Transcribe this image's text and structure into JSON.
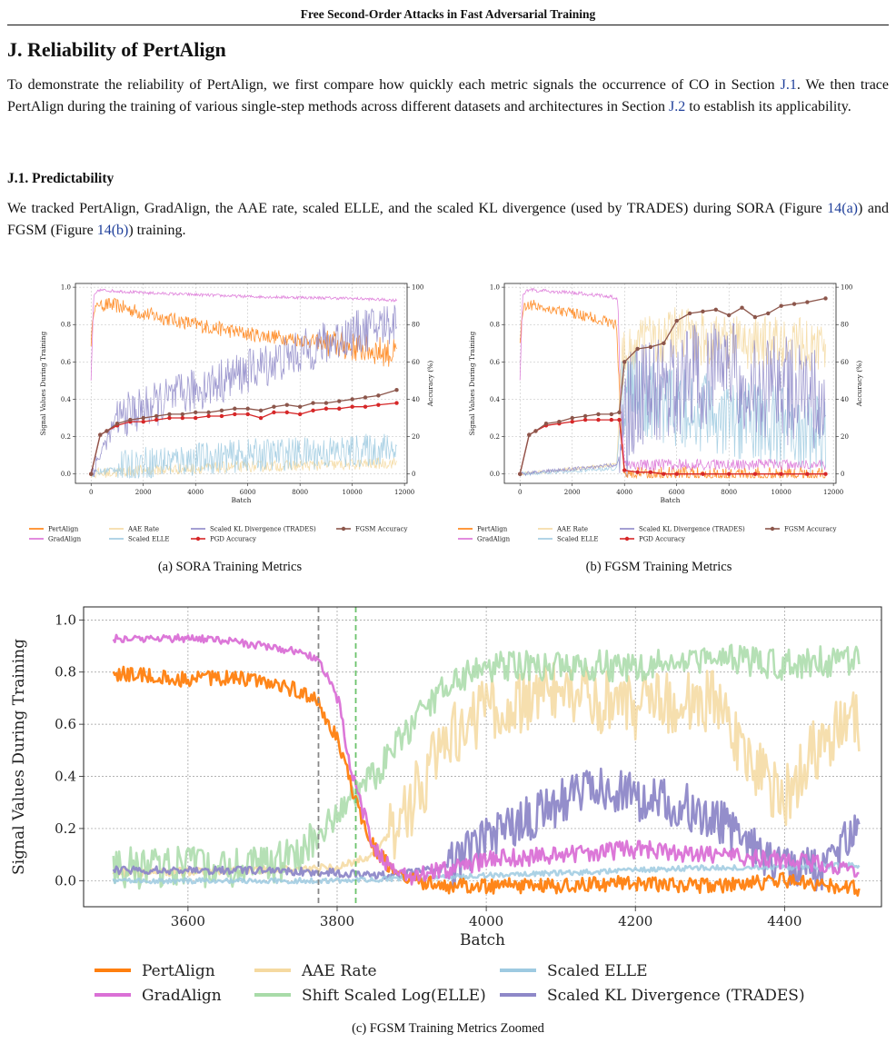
{
  "header": {
    "title": "Free Second-Order Attacks in Fast Adversarial Training"
  },
  "section": {
    "title": "J. Reliability of PertAlign",
    "intro": {
      "a": "To demonstrate the reliability of PertAlign, we first compare how quickly each metric signals the occurrence of CO in Section ",
      "ref1": "J.1",
      "b": ". We then trace PertAlign during the training of various single-step methods across different datasets and architectures in Section ",
      "ref2": "J.2",
      "c": " to establish its applicability."
    },
    "subsection": {
      "title": "J.1. Predictability",
      "para": {
        "a": "We tracked PertAlign, GradAlign, the AAE rate, scaled ELLE, and the scaled KL divergence (used by TRADES) during SORA (Figure ",
        "ref1": "14(a)",
        "b": ") and FGSM (Figure ",
        "ref2": "14(b)",
        "c": ") training."
      }
    }
  },
  "colors": {
    "pertalign": "#ff7f0e",
    "gradalign": "#da70d6",
    "aae": "#f5d9a0",
    "elle": "#9ecae1",
    "kl": "#8e88c8",
    "pgd": "#d62728",
    "fgsm": "#8c564b",
    "log_elle": "#a8dba8",
    "vline_gray": "#888888",
    "vline_green": "#6cc36c"
  },
  "figures": {
    "a": {
      "ylabel_left": "Signal Values During Training",
      "ylabel_right": "Accuracy (%)",
      "xlabel": "Batch",
      "caption": "(a)  SORA Training Metrics",
      "xticks": [
        "0",
        "2000",
        "4000",
        "6000",
        "8000",
        "10000",
        "12000"
      ],
      "yticks_left": [
        "0.0",
        "0.2",
        "0.4",
        "0.6",
        "0.8",
        "1.0"
      ],
      "yticks_right": [
        "0",
        "20",
        "40",
        "60",
        "80",
        "100"
      ],
      "legend": [
        "PertAlign",
        "GradAlign",
        "AAE Rate",
        "Scaled ELLE",
        "Scaled KL Divergence (TRADES)",
        "PGD Accuracy",
        "FGSM Accuracy"
      ]
    },
    "b": {
      "ylabel_left": "Signal Values During Training",
      "ylabel_right": "Accuracy (%)",
      "xlabel": "Batch",
      "caption": "(b)  FGSM Training Metrics",
      "xticks": [
        "0",
        "2000",
        "4000",
        "6000",
        "8000",
        "10000",
        "12000"
      ],
      "yticks_left": [
        "0.0",
        "0.2",
        "0.4",
        "0.6",
        "0.8",
        "1.0"
      ],
      "yticks_right": [
        "0",
        "20",
        "40",
        "60",
        "80",
        "100"
      ],
      "legend": [
        "PertAlign",
        "GradAlign",
        "AAE Rate",
        "Scaled ELLE",
        "Scaled KL Divergence (TRADES)",
        "PGD Accuracy",
        "FGSM Accuracy"
      ]
    },
    "c": {
      "ylabel": "Signal Values During Training",
      "xlabel": "Batch",
      "caption": "(c)  FGSM Training Metrics Zoomed",
      "xticks": [
        "3600",
        "3800",
        "4000",
        "4200",
        "4400"
      ],
      "yticks": [
        "0.0",
        "0.2",
        "0.4",
        "0.6",
        "0.8",
        "1.0"
      ],
      "legend": [
        "PertAlign",
        "GradAlign",
        "AAE Rate",
        "Shift Scaled Log(ELLE)",
        "Scaled ELLE",
        "Scaled KL Divergence (TRADES)"
      ]
    }
  },
  "chart_data": [
    {
      "type": "line",
      "title": "",
      "xlabel": "Batch",
      "ylabel": "Signal Values During Training",
      "y2label": "Accuracy (%)",
      "xlim": [
        -600,
        12100
      ],
      "ylim": [
        -0.05,
        1.02
      ],
      "y2lim": [
        -5,
        102
      ],
      "grid": true,
      "series": [
        {
          "name": "PertAlign",
          "x": [
            0,
            100,
            300,
            1000,
            2000,
            4000,
            6000,
            8000,
            10000,
            11000,
            11700
          ],
          "y": [
            0.7,
            0.88,
            0.91,
            0.9,
            0.86,
            0.8,
            0.75,
            0.72,
            0.68,
            0.66,
            0.64
          ]
        },
        {
          "name": "GradAlign",
          "x": [
            0,
            100,
            300,
            2000,
            6000,
            10000,
            11700
          ],
          "y": [
            0.5,
            0.95,
            0.985,
            0.97,
            0.95,
            0.94,
            0.93
          ]
        },
        {
          "name": "AAE Rate",
          "x": [
            0,
            2000,
            6000,
            10000,
            11700
          ],
          "y": [
            0.0,
            0.02,
            0.04,
            0.05,
            0.06
          ]
        },
        {
          "name": "Scaled ELLE",
          "x": [
            0,
            2000,
            6000,
            10000,
            11700
          ],
          "y": [
            0.0,
            0.06,
            0.1,
            0.12,
            0.14
          ]
        },
        {
          "name": "Scaled KL Divergence (TRADES)",
          "x": [
            0,
            1000,
            4000,
            6000,
            8000,
            10000,
            11700
          ],
          "y": [
            0.0,
            0.3,
            0.45,
            0.55,
            0.65,
            0.75,
            0.82
          ]
        },
        {
          "name": "PGD Accuracy",
          "x": [
            0,
            350,
            600,
            1000,
            1500,
            2000,
            2500,
            3000,
            3500,
            4000,
            4500,
            5000,
            5500,
            6000,
            6500,
            7000,
            7500,
            8000,
            8500,
            9000,
            9500,
            10000,
            10500,
            11000,
            11700
          ],
          "y": [
            0,
            21,
            23,
            26,
            28,
            28,
            29,
            30,
            30,
            30,
            31,
            31,
            32,
            32,
            30,
            33,
            33,
            32,
            34,
            35,
            35,
            36,
            36,
            37,
            38
          ]
        },
        {
          "name": "FGSM Accuracy",
          "x": [
            0,
            350,
            600,
            1000,
            1500,
            2000,
            2500,
            3000,
            3500,
            4000,
            4500,
            5000,
            5500,
            6000,
            6500,
            7000,
            7500,
            8000,
            8500,
            9000,
            9500,
            10000,
            10500,
            11000,
            11700
          ],
          "y": [
            0,
            21,
            23,
            27,
            29,
            30,
            31,
            32,
            32,
            33,
            33,
            34,
            35,
            35,
            34,
            36,
            37,
            36,
            38,
            38,
            39,
            40,
            41,
            42,
            45
          ]
        }
      ]
    },
    {
      "type": "line",
      "title": "",
      "xlabel": "Batch",
      "ylabel": "Signal Values During Training",
      "y2label": "Accuracy (%)",
      "xlim": [
        -600,
        12100
      ],
      "ylim": [
        -0.05,
        1.02
      ],
      "y2lim": [
        -5,
        102
      ],
      "grid": true,
      "series": [
        {
          "name": "PertAlign",
          "x": [
            0,
            100,
            300,
            1000,
            2000,
            3000,
            3700,
            3850,
            4000,
            6000,
            8000,
            10000,
            11700
          ],
          "y": [
            0.7,
            0.88,
            0.91,
            0.89,
            0.86,
            0.83,
            0.8,
            0.3,
            0.0,
            0.0,
            0.0,
            0.0,
            0.0
          ]
        },
        {
          "name": "GradAlign",
          "x": [
            0,
            100,
            300,
            2000,
            3500,
            3750,
            3850,
            4000,
            8000,
            11700
          ],
          "y": [
            0.5,
            0.95,
            0.985,
            0.97,
            0.95,
            0.93,
            0.4,
            0.05,
            0.05,
            0.05
          ]
        },
        {
          "name": "AAE Rate",
          "x": [
            0,
            3700,
            3900,
            4300,
            6000,
            8000,
            10000,
            11700
          ],
          "y": [
            0.0,
            0.05,
            0.6,
            0.7,
            0.75,
            0.7,
            0.7,
            0.7
          ]
        },
        {
          "name": "Scaled ELLE",
          "x": [
            0,
            3700,
            3900,
            4300,
            6000,
            8000,
            10000,
            11700
          ],
          "y": [
            0.0,
            0.03,
            0.4,
            0.45,
            0.35,
            0.3,
            0.25,
            0.2
          ]
        },
        {
          "name": "Scaled KL Divergence (TRADES)",
          "x": [
            0,
            3700,
            3900,
            4300,
            6000,
            8000,
            10000,
            11700
          ],
          "y": [
            0.0,
            0.05,
            0.15,
            0.4,
            0.5,
            0.55,
            0.45,
            0.4
          ]
        },
        {
          "name": "PGD Accuracy",
          "x": [
            0,
            350,
            600,
            1000,
            1500,
            2000,
            2500,
            3000,
            3500,
            3800,
            4000,
            4500,
            5000,
            5500,
            6000,
            7000,
            8000,
            9000,
            10000,
            11000,
            11700
          ],
          "y": [
            0,
            21,
            23,
            26,
            27,
            28,
            29,
            29,
            29,
            29,
            2,
            1,
            1,
            0,
            0,
            0,
            0,
            0,
            0,
            0,
            0
          ]
        },
        {
          "name": "FGSM Accuracy",
          "x": [
            0,
            350,
            600,
            1000,
            1500,
            2000,
            2500,
            3000,
            3500,
            3800,
            4000,
            4500,
            5000,
            5500,
            6000,
            6500,
            7000,
            7500,
            8000,
            8500,
            9000,
            9500,
            10000,
            10500,
            11000,
            11700
          ],
          "y": [
            0,
            21,
            23,
            27,
            28,
            30,
            31,
            32,
            32,
            33,
            60,
            67,
            68,
            70,
            82,
            86,
            87,
            88,
            85,
            89,
            84,
            86,
            90,
            91,
            92,
            94
          ]
        }
      ]
    },
    {
      "type": "line",
      "title": "",
      "xlabel": "Batch",
      "ylabel": "Signal Values During Training",
      "xlim": [
        3460,
        4530
      ],
      "ylim": [
        -0.1,
        1.05
      ],
      "grid": true,
      "vlines": [
        3775,
        3825
      ],
      "series": [
        {
          "name": "PertAlign",
          "x": [
            3500,
            3550,
            3600,
            3650,
            3700,
            3750,
            3775,
            3800,
            3825,
            3850,
            3875,
            3900,
            3950,
            4000,
            4100,
            4200,
            4300,
            4400,
            4500
          ],
          "y": [
            0.79,
            0.79,
            0.77,
            0.78,
            0.76,
            0.73,
            0.68,
            0.55,
            0.3,
            0.12,
            0.04,
            0.0,
            -0.02,
            -0.02,
            -0.02,
            -0.01,
            -0.02,
            0.0,
            -0.03
          ]
        },
        {
          "name": "GradAlign",
          "x": [
            3500,
            3550,
            3600,
            3650,
            3700,
            3750,
            3775,
            3800,
            3825,
            3850,
            3875,
            3900,
            3950,
            4000,
            4100,
            4200,
            4300,
            4400,
            4500
          ],
          "y": [
            0.93,
            0.93,
            0.93,
            0.92,
            0.9,
            0.88,
            0.85,
            0.7,
            0.35,
            0.12,
            0.04,
            0.02,
            0.04,
            0.08,
            0.1,
            0.12,
            0.1,
            0.08,
            0.04
          ]
        },
        {
          "name": "AAE Rate",
          "x": [
            3500,
            3700,
            3800,
            3850,
            3900,
            3950,
            4000,
            4100,
            4200,
            4300,
            4350,
            4400,
            4450,
            4500
          ],
          "y": [
            0.03,
            0.04,
            0.05,
            0.1,
            0.3,
            0.55,
            0.65,
            0.72,
            0.65,
            0.7,
            0.45,
            0.3,
            0.55,
            0.6
          ]
        },
        {
          "name": "Shift Scaled Log(ELLE)",
          "x": [
            3500,
            3600,
            3700,
            3750,
            3800,
            3850,
            3900,
            3950,
            4000,
            4100,
            4200,
            4300,
            4400,
            4500
          ],
          "y": [
            0.05,
            0.05,
            0.05,
            0.1,
            0.25,
            0.4,
            0.6,
            0.75,
            0.82,
            0.83,
            0.82,
            0.85,
            0.83,
            0.85
          ]
        },
        {
          "name": "Scaled ELLE",
          "x": [
            3500,
            3800,
            3900,
            4000,
            4100,
            4200,
            4300,
            4400,
            4500
          ],
          "y": [
            0.0,
            0.0,
            0.01,
            0.02,
            0.03,
            0.04,
            0.05,
            0.05,
            0.06
          ]
        },
        {
          "name": "Scaled KL Divergence (TRADES)",
          "x": [
            3500,
            3600,
            3700,
            3800,
            3850,
            3900,
            3950,
            4000,
            4100,
            4150,
            4200,
            4250,
            4300,
            4350,
            4400,
            4450,
            4500
          ],
          "y": [
            0.04,
            0.04,
            0.04,
            0.03,
            0.02,
            0.03,
            0.05,
            0.15,
            0.3,
            0.35,
            0.32,
            0.3,
            0.25,
            0.15,
            0.06,
            0.05,
            0.2
          ]
        }
      ]
    }
  ]
}
